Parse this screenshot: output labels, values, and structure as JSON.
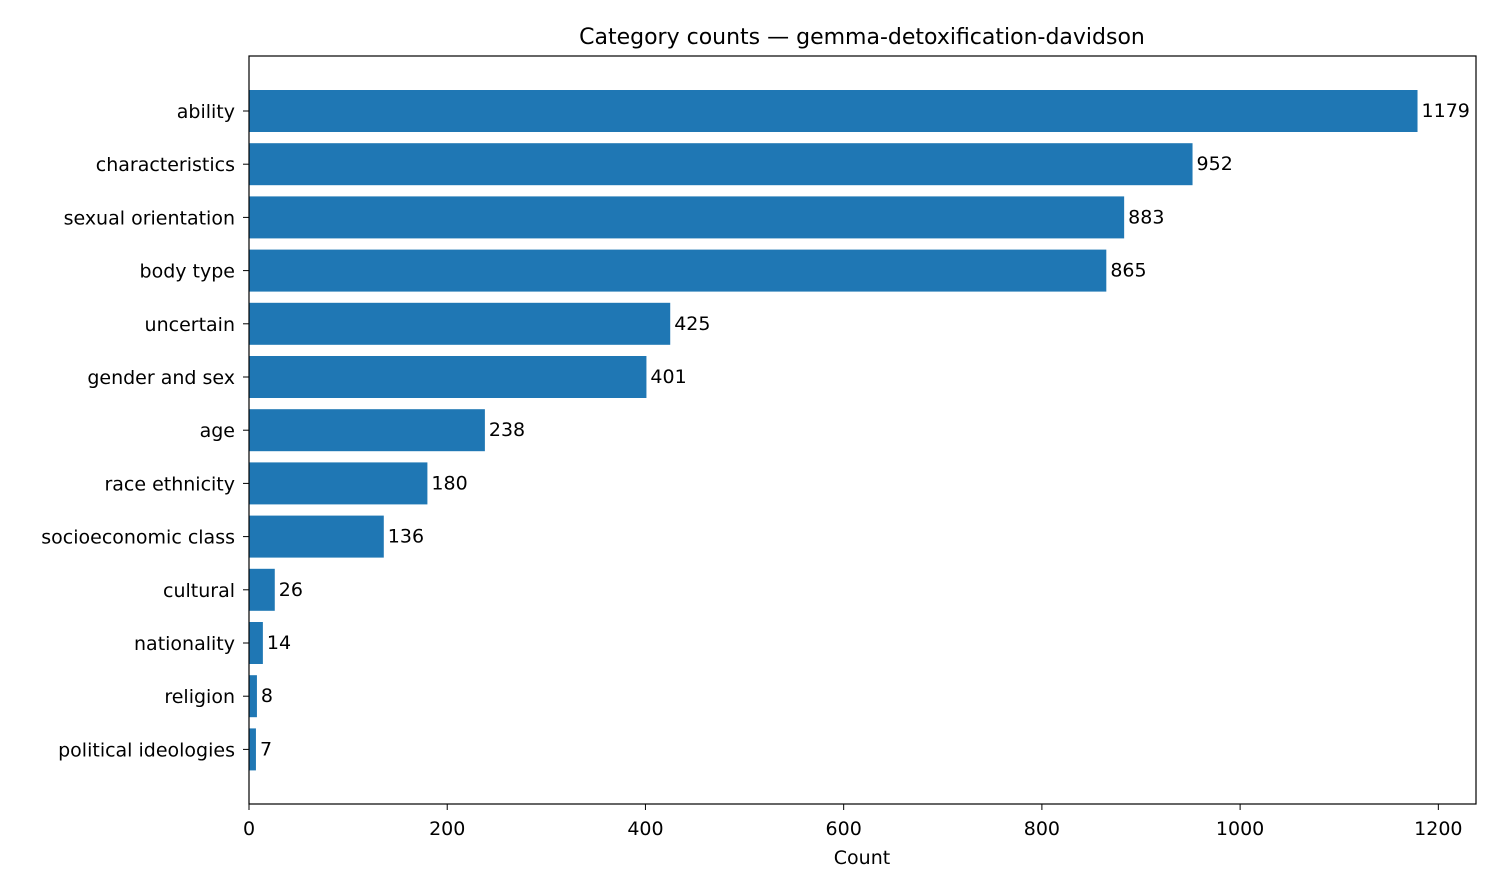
{
  "chart_data": {
    "type": "bar",
    "orientation": "horizontal",
    "title": "Category counts — gemma-detoxification-davidson",
    "xlabel": "Count",
    "ylabel": "",
    "categories": [
      "ability",
      "characteristics",
      "sexual orientation",
      "body type",
      "uncertain",
      "gender and sex",
      "age",
      "race ethnicity",
      "socioeconomic class",
      "cultural",
      "nationality",
      "religion",
      "political ideologies"
    ],
    "values": [
      1179,
      952,
      883,
      865,
      425,
      401,
      238,
      180,
      136,
      26,
      14,
      8,
      7
    ],
    "xlim": [
      0,
      1238
    ],
    "xticks": [
      0,
      200,
      400,
      600,
      800,
      1000,
      1200
    ],
    "grid": false,
    "legend": "none",
    "bar_color": "#1f77b4"
  }
}
